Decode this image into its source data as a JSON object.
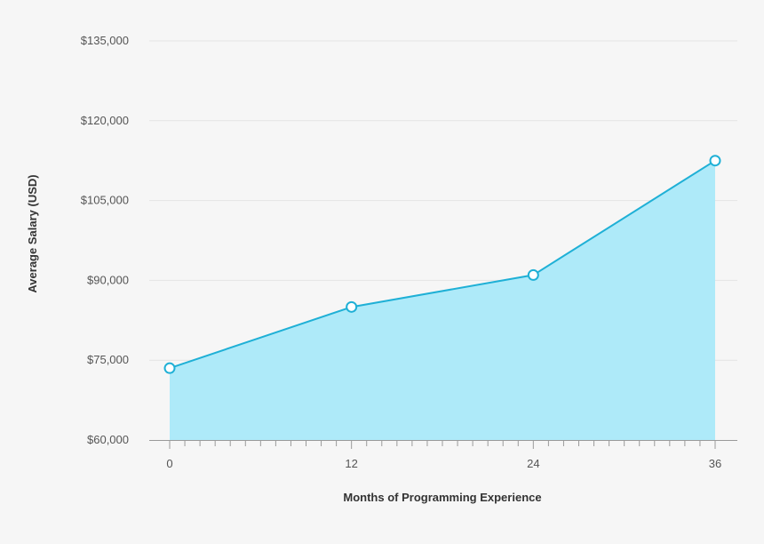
{
  "chart_data": {
    "type": "area",
    "title": "",
    "xlabel": "Months of Programming Experience",
    "ylabel": "Average Salary (USD)",
    "x": [
      0,
      12,
      24,
      36
    ],
    "x_tick_labels": [
      "0",
      "12",
      "24",
      "36"
    ],
    "y_tick_values": [
      60000,
      75000,
      90000,
      105000,
      120000,
      135000
    ],
    "y_tick_labels": [
      "$60,000",
      "$75,000",
      "$90,000",
      "$105,000",
      "$120,000",
      "$135,000"
    ],
    "ylim": [
      60000,
      135000
    ],
    "xlim": [
      0,
      36
    ],
    "grid": true,
    "legend": "none",
    "series": [
      {
        "values": [
          73500,
          85000,
          91000,
          112500
        ]
      }
    ],
    "colors": {
      "line": "#1fb0d6",
      "fill": "#aeeaf9",
      "marker_fill": "#ffffff",
      "background": "#f6f6f6"
    }
  }
}
